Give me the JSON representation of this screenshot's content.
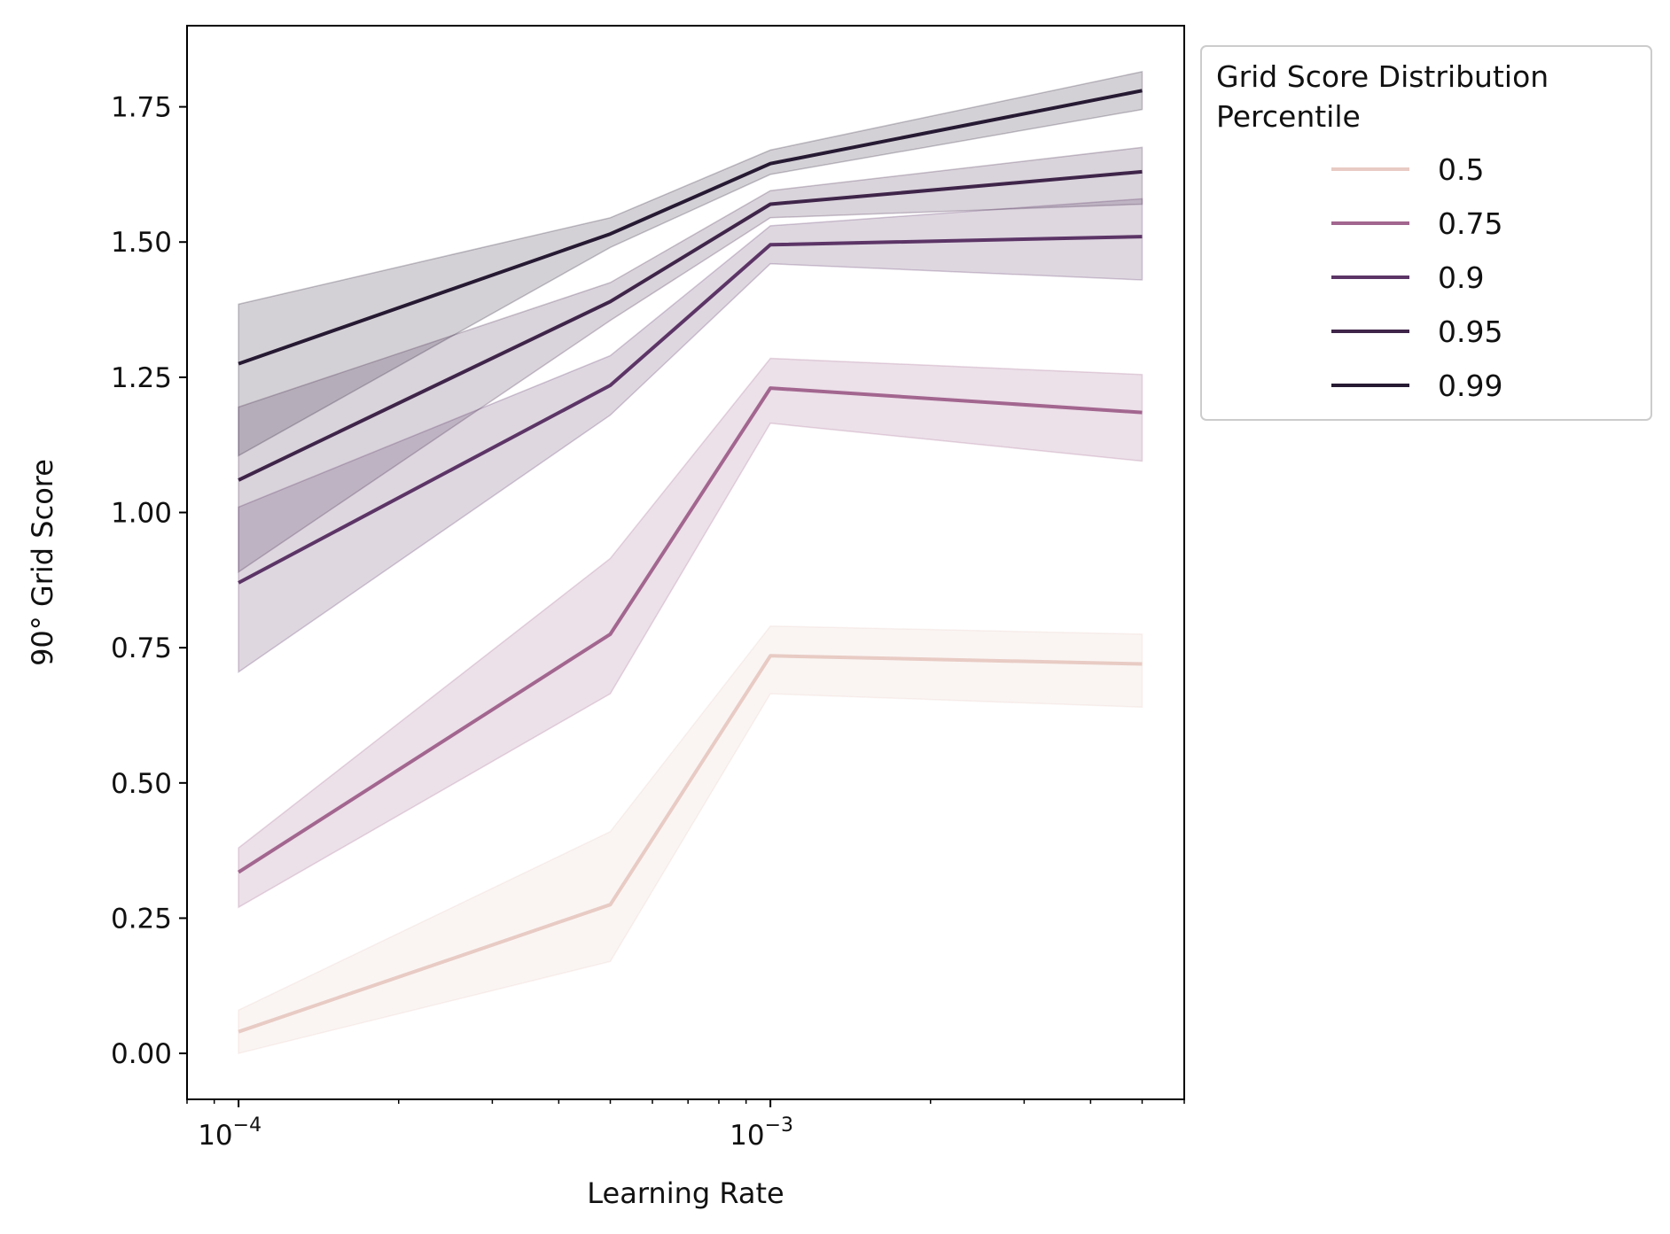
{
  "chart_data": {
    "type": "line",
    "xlabel": "Learning Rate",
    "ylabel": "90° Grid Score",
    "xscale": "log",
    "xlim": [
      8e-05,
      0.006
    ],
    "ylim": [
      -0.085,
      1.9
    ],
    "x_tick_labels": [
      {
        "value": 0.0001,
        "base": "10",
        "exp": "−4"
      },
      {
        "value": 0.001,
        "base": "10",
        "exp": "−3"
      }
    ],
    "y_ticks": [
      0.0,
      0.25,
      0.5,
      0.75,
      1.0,
      1.25,
      1.5,
      1.75
    ],
    "y_tick_labels": [
      "0.00",
      "0.25",
      "0.50",
      "0.75",
      "1.00",
      "1.25",
      "1.50",
      "1.75"
    ],
    "x": [
      0.0001,
      0.0005,
      0.001,
      0.005
    ],
    "legend": {
      "title_lines": [
        "Grid Score Distribution",
        "Percentile"
      ],
      "placement": "outside-top-right"
    },
    "series": [
      {
        "name": "0.5",
        "color": "#e8cbc4",
        "values": [
          0.04,
          0.275,
          0.735,
          0.72
        ],
        "lower": [
          0.0,
          0.17,
          0.665,
          0.64
        ],
        "upper": [
          0.08,
          0.41,
          0.79,
          0.775
        ]
      },
      {
        "name": "0.75",
        "color": "#a2668f",
        "values": [
          0.335,
          0.775,
          1.23,
          1.185
        ],
        "lower": [
          0.27,
          0.665,
          1.165,
          1.095
        ],
        "upper": [
          0.38,
          0.915,
          1.285,
          1.255
        ]
      },
      {
        "name": "0.9",
        "color": "#5c3566",
        "values": [
          0.87,
          1.235,
          1.495,
          1.51
        ],
        "lower": [
          0.705,
          1.18,
          1.46,
          1.43
        ],
        "upper": [
          1.01,
          1.29,
          1.53,
          1.58
        ]
      },
      {
        "name": "0.95",
        "color": "#3f2549",
        "values": [
          1.06,
          1.39,
          1.57,
          1.63
        ],
        "lower": [
          0.89,
          1.355,
          1.545,
          1.57
        ],
        "upper": [
          1.195,
          1.425,
          1.595,
          1.675
        ]
      },
      {
        "name": "0.99",
        "color": "#261a33",
        "values": [
          1.275,
          1.515,
          1.645,
          1.78
        ],
        "lower": [
          1.105,
          1.49,
          1.625,
          1.745
        ],
        "upper": [
          1.385,
          1.545,
          1.67,
          1.815
        ]
      }
    ]
  }
}
